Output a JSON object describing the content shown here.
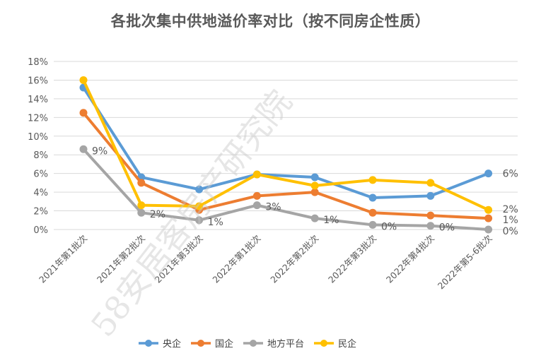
{
  "chart_data": {
    "type": "line",
    "title": "各批次集中供地溢价率对比（按不同房企性质）",
    "categories": [
      "2021年第1批次",
      "2021年第2批次",
      "2021年第3批次",
      "2022年第1批次",
      "2022年第2批次",
      "2022年第3批次",
      "2022年第4批次",
      "2022年第5-6批次"
    ],
    "ylim": [
      0,
      18
    ],
    "yticks": [
      "0%",
      "2%",
      "4%",
      "6%",
      "8%",
      "10%",
      "12%",
      "14%",
      "16%",
      "18%"
    ],
    "grid": true,
    "legend_position": "bottom",
    "series": [
      {
        "name": "央企",
        "color": "#5B9BD5",
        "values": [
          15.2,
          5.6,
          4.3,
          5.9,
          5.6,
          3.4,
          3.6,
          6.0
        ]
      },
      {
        "name": "国企",
        "color": "#ED7D31",
        "values": [
          12.5,
          5.0,
          2.1,
          3.6,
          4.0,
          1.8,
          1.5,
          1.2
        ]
      },
      {
        "name": "地方平台",
        "color": "#A5A5A5",
        "values": [
          8.6,
          1.8,
          1.0,
          2.6,
          1.2,
          0.5,
          0.4,
          0.0
        ]
      },
      {
        "name": "民企",
        "color": "#FFC000",
        "values": [
          16.0,
          2.6,
          2.5,
          5.9,
          4.7,
          5.3,
          5.0,
          2.1
        ]
      }
    ],
    "data_labels": [
      {
        "series": 2,
        "index": 0,
        "text": "9%"
      },
      {
        "series": 2,
        "index": 1,
        "text": "2%"
      },
      {
        "series": 2,
        "index": 2,
        "text": "1%"
      },
      {
        "series": 2,
        "index": 3,
        "text": "3%"
      },
      {
        "series": 2,
        "index": 4,
        "text": "1%"
      },
      {
        "series": 2,
        "index": 5,
        "text": "0%"
      },
      {
        "series": 2,
        "index": 6,
        "text": "0%"
      },
      {
        "series": 0,
        "index": 7,
        "text": "6%"
      },
      {
        "series": 3,
        "index": 7,
        "text": "2%"
      },
      {
        "series": 1,
        "index": 7,
        "text": "1%"
      },
      {
        "series": 2,
        "index": 7,
        "text": "0%"
      }
    ]
  },
  "watermark": "58安居客房产研究院"
}
